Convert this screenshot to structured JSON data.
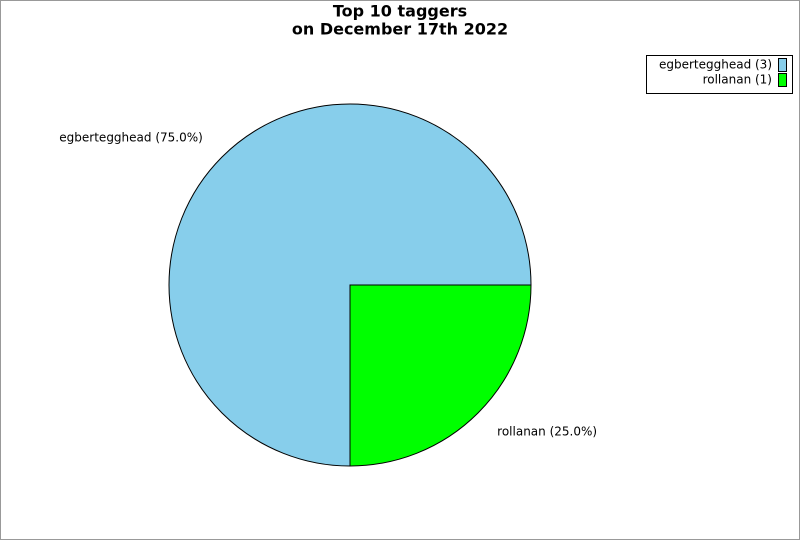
{
  "chart_data": {
    "type": "pie",
    "title": [
      "Top 10 taggers",
      "on December 17th 2022"
    ],
    "values": [
      75,
      25
    ],
    "value_labels": [
      "egbertegghead (75.0%)",
      "rollanan (25.0%)"
    ],
    "counts": [
      3,
      1
    ],
    "legend_labels": [
      "egbertegghead (3)",
      "rollanan (1)"
    ],
    "colors": [
      "#87ceeb",
      "#00ff00"
    ],
    "legend": "top-right"
  }
}
